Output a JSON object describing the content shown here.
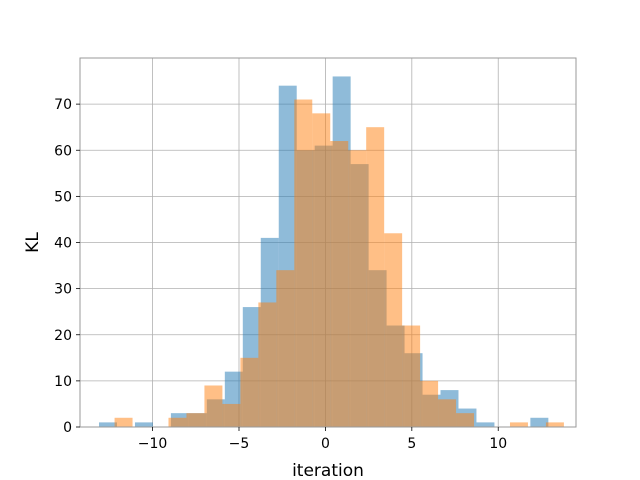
{
  "chart_data": {
    "type": "bar",
    "subtype": "histogram-overlay",
    "title": "",
    "xlabel": "iteration",
    "ylabel": "KL",
    "xlim": [
      -14.2,
      14.5
    ],
    "ylim": [
      0,
      80
    ],
    "xticks": [
      -10,
      -5,
      0,
      5,
      10
    ],
    "xtick_labels": [
      "−10",
      "−5",
      "0",
      "5",
      "10"
    ],
    "yticks": [
      0,
      10,
      20,
      30,
      40,
      50,
      60,
      70
    ],
    "ytick_labels": [
      "0",
      "10",
      "20",
      "30",
      "40",
      "50",
      "60",
      "70"
    ],
    "grid": true,
    "series": [
      {
        "color": "#1f77b4",
        "opacity": 0.5,
        "bin_start": -13.1,
        "bin_width": 1.04,
        "values": [
          1,
          0,
          1,
          0,
          3,
          3,
          6,
          12,
          26,
          41,
          74,
          60,
          61,
          76,
          57,
          34,
          22,
          16,
          7,
          8,
          4,
          1,
          0,
          0,
          2
        ]
      },
      {
        "color": "#ff7f0e",
        "opacity": 0.5,
        "bin_start": -12.2,
        "bin_width": 1.04,
        "values": [
          2,
          0,
          0,
          2,
          3,
          9,
          5,
          15,
          27,
          34,
          71,
          68,
          62,
          60,
          65,
          42,
          22,
          10,
          6,
          3,
          0,
          0,
          1,
          0,
          1
        ]
      }
    ]
  }
}
